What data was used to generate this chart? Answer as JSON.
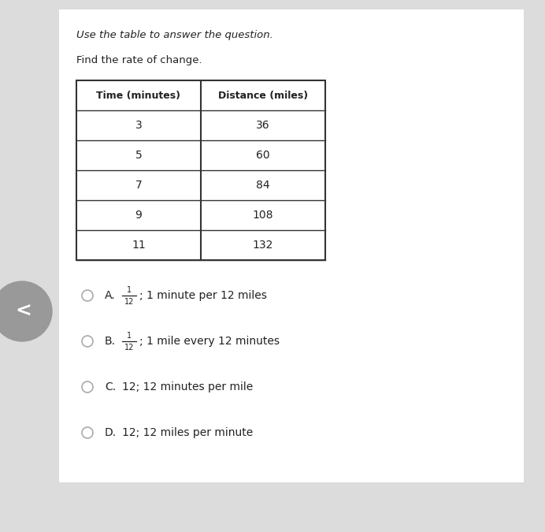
{
  "title_italic": "Use the table to answer the question.",
  "subtitle": "Find the rate of change.",
  "col_headers": [
    "Time (minutes)",
    "Distance (miles)"
  ],
  "table_data": [
    [
      "3",
      "36"
    ],
    [
      "5",
      "60"
    ],
    [
      "7",
      "84"
    ],
    [
      "9",
      "108"
    ],
    [
      "11",
      "132"
    ]
  ],
  "options": [
    {
      "label": "A.",
      "fraction": "1/12",
      "text": "; 1 minute per 12 miles"
    },
    {
      "label": "B.",
      "fraction": "1/12",
      "text": "; 1 mile every 12 minutes"
    },
    {
      "label": "C.",
      "fraction": null,
      "text": "12; 12 minutes per mile"
    },
    {
      "label": "D.",
      "fraction": null,
      "text": "12; 12 miles per minute"
    }
  ],
  "bg_color": "#dcdcdc",
  "card_color": "#ffffff",
  "text_color": "#222222",
  "table_border_color": "#333333",
  "nav_circle_color": "#999999",
  "nav_arrow_color": "#ffffff",
  "radio_color": "#aaaaaa",
  "fig_width": 6.92,
  "fig_height": 6.75,
  "dpi": 100
}
